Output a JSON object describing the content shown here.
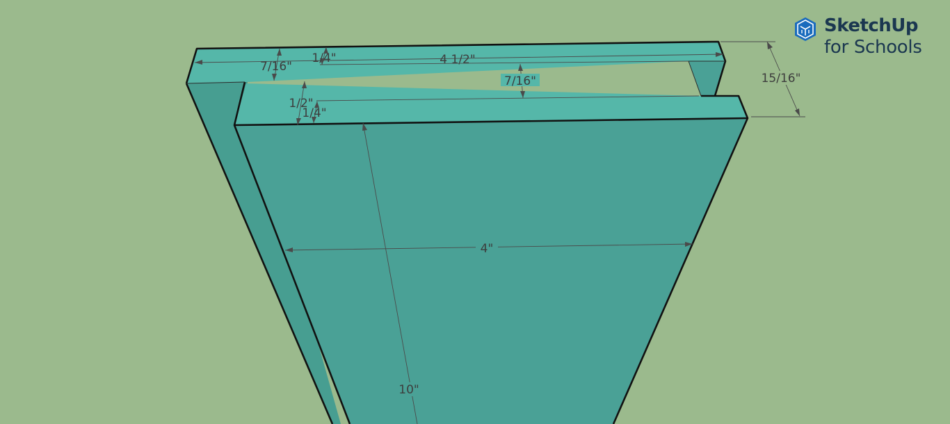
{
  "logo": {
    "brand": "SketchUp",
    "subtitle": "for Schools",
    "icon": "sketchup-cube-icon"
  },
  "colors": {
    "background": "#9bba8d",
    "top_face": "#55b7a9",
    "front_face": "#4aa196",
    "side_face": "#479e91",
    "edge": "#111111",
    "brand": "#1b3750",
    "logo_icon": "#1a6bbd"
  },
  "dimensions": {
    "total_thickness": "15/16\"",
    "width_top": "4 1/2\"",
    "lip_depth": "7/16\"",
    "lip_depth_inner": "7/16\"",
    "step_top": "1/4\"",
    "step_mid": "1/2\"",
    "step_low": "1/4\"",
    "front_width": "4\"",
    "length": "10\""
  }
}
